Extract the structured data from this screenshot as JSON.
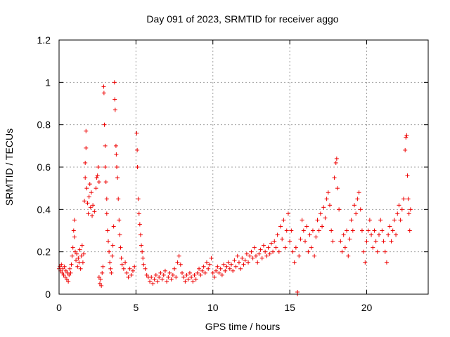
{
  "chart_data": {
    "type": "scatter",
    "title": "Day 091 of 2023, SRMTID for receiver aggo",
    "xlabel": "GPS time / hours",
    "ylabel": "SRMTID / TECUs",
    "xlim": [
      0,
      24
    ],
    "ylim": [
      0,
      1.2
    ],
    "xticks": [
      0,
      5,
      10,
      15,
      20
    ],
    "xtick_labels": [
      "0",
      "5",
      "10",
      "15",
      "20"
    ],
    "yticks": [
      0,
      0.2,
      0.4,
      0.6,
      0.8,
      1.0,
      1.2
    ],
    "ytick_labels": [
      "0",
      "0.2",
      "0.4",
      "0.6",
      "0.8",
      "1",
      "1.2"
    ],
    "grid": true,
    "marker": "+",
    "color": "#ee0000",
    "series": [
      {
        "name": "SRMTID",
        "points": [
          [
            0.0,
            0.12
          ],
          [
            0.05,
            0.13
          ],
          [
            0.1,
            0.11
          ],
          [
            0.15,
            0.14
          ],
          [
            0.2,
            0.1
          ],
          [
            0.25,
            0.12
          ],
          [
            0.3,
            0.09
          ],
          [
            0.35,
            0.13
          ],
          [
            0.4,
            0.08
          ],
          [
            0.45,
            0.11
          ],
          [
            0.5,
            0.07
          ],
          [
            0.55,
            0.1
          ],
          [
            0.6,
            0.06
          ],
          [
            0.65,
            0.09
          ],
          [
            0.7,
            0.12
          ],
          [
            0.75,
            0.1
          ],
          [
            0.8,
            0.14
          ],
          [
            0.85,
            0.18
          ],
          [
            0.9,
            0.22
          ],
          [
            0.95,
            0.3
          ],
          [
            1.0,
            0.35
          ],
          [
            1.0,
            0.27
          ],
          [
            1.05,
            0.2
          ],
          [
            1.1,
            0.16
          ],
          [
            1.15,
            0.19
          ],
          [
            1.2,
            0.13
          ],
          [
            1.25,
            0.17
          ],
          [
            1.3,
            0.15
          ],
          [
            1.35,
            0.21
          ],
          [
            1.4,
            0.12
          ],
          [
            1.45,
            0.18
          ],
          [
            1.5,
            0.23
          ],
          [
            1.55,
            0.15
          ],
          [
            1.6,
            0.19
          ],
          [
            1.65,
            0.44
          ],
          [
            1.7,
            0.55
          ],
          [
            1.7,
            0.62
          ],
          [
            1.75,
            0.77
          ],
          [
            1.75,
            0.69
          ],
          [
            1.8,
            0.5
          ],
          [
            1.85,
            0.43
          ],
          [
            1.9,
            0.38
          ],
          [
            1.95,
            0.46
          ],
          [
            2.0,
            0.52
          ],
          [
            2.05,
            0.41
          ],
          [
            2.1,
            0.48
          ],
          [
            2.15,
            0.37
          ],
          [
            2.2,
            0.42
          ],
          [
            2.3,
            0.39
          ],
          [
            2.4,
            0.5
          ],
          [
            2.45,
            0.55
          ],
          [
            2.5,
            0.56
          ],
          [
            2.55,
            0.6
          ],
          [
            2.6,
            0.53
          ],
          [
            2.6,
            0.08
          ],
          [
            2.65,
            0.05
          ],
          [
            2.7,
            0.07
          ],
          [
            2.75,
            0.04
          ],
          [
            2.8,
            0.1
          ],
          [
            2.85,
            0.13
          ],
          [
            2.9,
            0.98
          ],
          [
            2.92,
            0.95
          ],
          [
            2.95,
            0.8
          ],
          [
            3.0,
            0.7
          ],
          [
            3.0,
            0.6
          ],
          [
            3.05,
            0.53
          ],
          [
            3.1,
            0.45
          ],
          [
            3.1,
            0.38
          ],
          [
            3.15,
            0.3
          ],
          [
            3.2,
            0.25
          ],
          [
            3.25,
            0.2
          ],
          [
            3.3,
            0.15
          ],
          [
            3.35,
            0.12
          ],
          [
            3.4,
            0.1
          ],
          [
            3.45,
            0.18
          ],
          [
            3.5,
            0.23
          ],
          [
            3.55,
            0.32
          ],
          [
            3.6,
            1.0
          ],
          [
            3.62,
            0.92
          ],
          [
            3.65,
            0.87
          ],
          [
            3.7,
            0.7
          ],
          [
            3.72,
            0.66
          ],
          [
            3.75,
            0.6
          ],
          [
            3.8,
            0.55
          ],
          [
            3.85,
            0.45
          ],
          [
            3.9,
            0.35
          ],
          [
            3.95,
            0.28
          ],
          [
            4.0,
            0.22
          ],
          [
            4.05,
            0.17
          ],
          [
            4.1,
            0.14
          ],
          [
            4.2,
            0.12
          ],
          [
            4.3,
            0.15
          ],
          [
            4.4,
            0.1
          ],
          [
            4.5,
            0.08
          ],
          [
            4.6,
            0.12
          ],
          [
            4.7,
            0.09
          ],
          [
            4.8,
            0.11
          ],
          [
            4.9,
            0.13
          ],
          [
            5.05,
            0.76
          ],
          [
            5.08,
            0.68
          ],
          [
            5.1,
            0.6
          ],
          [
            5.15,
            0.45
          ],
          [
            5.2,
            0.38
          ],
          [
            5.25,
            0.33
          ],
          [
            5.3,
            0.28
          ],
          [
            5.35,
            0.23
          ],
          [
            5.4,
            0.2
          ],
          [
            5.45,
            0.17
          ],
          [
            5.5,
            0.14
          ],
          [
            5.6,
            0.12
          ],
          [
            5.7,
            0.09
          ],
          [
            5.8,
            0.08
          ],
          [
            5.9,
            0.06
          ],
          [
            6.0,
            0.08
          ],
          [
            6.1,
            0.05
          ],
          [
            6.2,
            0.07
          ],
          [
            6.3,
            0.09
          ],
          [
            6.4,
            0.06
          ],
          [
            6.5,
            0.08
          ],
          [
            6.6,
            0.1
          ],
          [
            6.7,
            0.07
          ],
          [
            6.8,
            0.09
          ],
          [
            6.9,
            0.11
          ],
          [
            7.0,
            0.06
          ],
          [
            7.1,
            0.08
          ],
          [
            7.2,
            0.1
          ],
          [
            7.3,
            0.07
          ],
          [
            7.4,
            0.09
          ],
          [
            7.5,
            0.12
          ],
          [
            7.6,
            0.08
          ],
          [
            7.7,
            0.15
          ],
          [
            7.8,
            0.18
          ],
          [
            7.9,
            0.14
          ],
          [
            8.0,
            0.1
          ],
          [
            8.1,
            0.08
          ],
          [
            8.2,
            0.06
          ],
          [
            8.3,
            0.09
          ],
          [
            8.4,
            0.07
          ],
          [
            8.5,
            0.1
          ],
          [
            8.6,
            0.08
          ],
          [
            8.7,
            0.06
          ],
          [
            8.8,
            0.09
          ],
          [
            8.9,
            0.07
          ],
          [
            9.0,
            0.1
          ],
          [
            9.1,
            0.12
          ],
          [
            9.2,
            0.09
          ],
          [
            9.3,
            0.11
          ],
          [
            9.4,
            0.13
          ],
          [
            9.5,
            0.1
          ],
          [
            9.6,
            0.15
          ],
          [
            9.7,
            0.12
          ],
          [
            9.8,
            0.14
          ],
          [
            9.9,
            0.17
          ],
          [
            10.0,
            0.1
          ],
          [
            10.1,
            0.08
          ],
          [
            10.2,
            0.11
          ],
          [
            10.3,
            0.13
          ],
          [
            10.4,
            0.1
          ],
          [
            10.5,
            0.12
          ],
          [
            10.6,
            0.09
          ],
          [
            10.7,
            0.14
          ],
          [
            10.8,
            0.11
          ],
          [
            10.9,
            0.13
          ],
          [
            11.0,
            0.15
          ],
          [
            11.1,
            0.12
          ],
          [
            11.2,
            0.14
          ],
          [
            11.3,
            0.11
          ],
          [
            11.4,
            0.16
          ],
          [
            11.5,
            0.13
          ],
          [
            11.6,
            0.18
          ],
          [
            11.7,
            0.15
          ],
          [
            11.8,
            0.12
          ],
          [
            11.9,
            0.17
          ],
          [
            12.0,
            0.14
          ],
          [
            12.1,
            0.16
          ],
          [
            12.2,
            0.19
          ],
          [
            12.3,
            0.15
          ],
          [
            12.4,
            0.18
          ],
          [
            12.5,
            0.2
          ],
          [
            12.6,
            0.17
          ],
          [
            12.7,
            0.22
          ],
          [
            12.8,
            0.18
          ],
          [
            12.9,
            0.15
          ],
          [
            13.0,
            0.19
          ],
          [
            13.1,
            0.21
          ],
          [
            13.2,
            0.17
          ],
          [
            13.3,
            0.23
          ],
          [
            13.4,
            0.2
          ],
          [
            13.5,
            0.18
          ],
          [
            13.6,
            0.22
          ],
          [
            13.7,
            0.19
          ],
          [
            13.8,
            0.24
          ],
          [
            13.9,
            0.2
          ],
          [
            14.0,
            0.25
          ],
          [
            14.1,
            0.22
          ],
          [
            14.2,
            0.28
          ],
          [
            14.3,
            0.2
          ],
          [
            14.4,
            0.32
          ],
          [
            14.5,
            0.26
          ],
          [
            14.6,
            0.35
          ],
          [
            14.7,
            0.22
          ],
          [
            14.8,
            0.3
          ],
          [
            14.9,
            0.38
          ],
          [
            15.0,
            0.25
          ],
          [
            15.1,
            0.3
          ],
          [
            15.2,
            0.2
          ],
          [
            15.3,
            0.15
          ],
          [
            15.4,
            0.22
          ],
          [
            15.5,
            0.01
          ],
          [
            15.5,
            0.0
          ],
          [
            15.6,
            0.18
          ],
          [
            15.7,
            0.26
          ],
          [
            15.8,
            0.35
          ],
          [
            15.9,
            0.3
          ],
          [
            16.0,
            0.25
          ],
          [
            16.1,
            0.32
          ],
          [
            16.2,
            0.2
          ],
          [
            16.3,
            0.28
          ],
          [
            16.4,
            0.22
          ],
          [
            16.5,
            0.3
          ],
          [
            16.6,
            0.18
          ],
          [
            16.7,
            0.27
          ],
          [
            16.8,
            0.35
          ],
          [
            16.9,
            0.3
          ],
          [
            17.0,
            0.38
          ],
          [
            17.1,
            0.32
          ],
          [
            17.2,
            0.41
          ],
          [
            17.3,
            0.36
          ],
          [
            17.4,
            0.45
          ],
          [
            17.5,
            0.48
          ],
          [
            17.6,
            0.42
          ],
          [
            17.7,
            0.3
          ],
          [
            17.8,
            0.25
          ],
          [
            17.9,
            0.55
          ],
          [
            18.0,
            0.62
          ],
          [
            18.05,
            0.64
          ],
          [
            18.1,
            0.5
          ],
          [
            18.2,
            0.4
          ],
          [
            18.3,
            0.25
          ],
          [
            18.4,
            0.2
          ],
          [
            18.5,
            0.28
          ],
          [
            18.6,
            0.22
          ],
          [
            18.7,
            0.3
          ],
          [
            18.8,
            0.18
          ],
          [
            18.9,
            0.26
          ],
          [
            19.0,
            0.35
          ],
          [
            19.1,
            0.3
          ],
          [
            19.2,
            0.42
          ],
          [
            19.3,
            0.38
          ],
          [
            19.4,
            0.45
          ],
          [
            19.5,
            0.48
          ],
          [
            19.6,
            0.4
          ],
          [
            19.7,
            0.3
          ],
          [
            19.8,
            0.2
          ],
          [
            19.9,
            0.15
          ],
          [
            20.0,
            0.25
          ],
          [
            20.1,
            0.3
          ],
          [
            20.2,
            0.35
          ],
          [
            20.3,
            0.28
          ],
          [
            20.4,
            0.22
          ],
          [
            20.5,
            0.3
          ],
          [
            20.6,
            0.25
          ],
          [
            20.7,
            0.2
          ],
          [
            20.8,
            0.28
          ],
          [
            20.9,
            0.35
          ],
          [
            21.0,
            0.3
          ],
          [
            21.1,
            0.25
          ],
          [
            21.2,
            0.2
          ],
          [
            21.3,
            0.15
          ],
          [
            21.4,
            0.28
          ],
          [
            21.5,
            0.32
          ],
          [
            21.6,
            0.25
          ],
          [
            21.7,
            0.3
          ],
          [
            21.8,
            0.35
          ],
          [
            21.9,
            0.28
          ],
          [
            22.0,
            0.38
          ],
          [
            22.1,
            0.42
          ],
          [
            22.2,
            0.35
          ],
          [
            22.3,
            0.4
          ],
          [
            22.4,
            0.45
          ],
          [
            22.5,
            0.68
          ],
          [
            22.55,
            0.74
          ],
          [
            22.6,
            0.75
          ],
          [
            22.65,
            0.56
          ],
          [
            22.7,
            0.45
          ],
          [
            22.75,
            0.38
          ],
          [
            22.8,
            0.3
          ],
          [
            22.85,
            0.4
          ]
        ]
      }
    ]
  }
}
